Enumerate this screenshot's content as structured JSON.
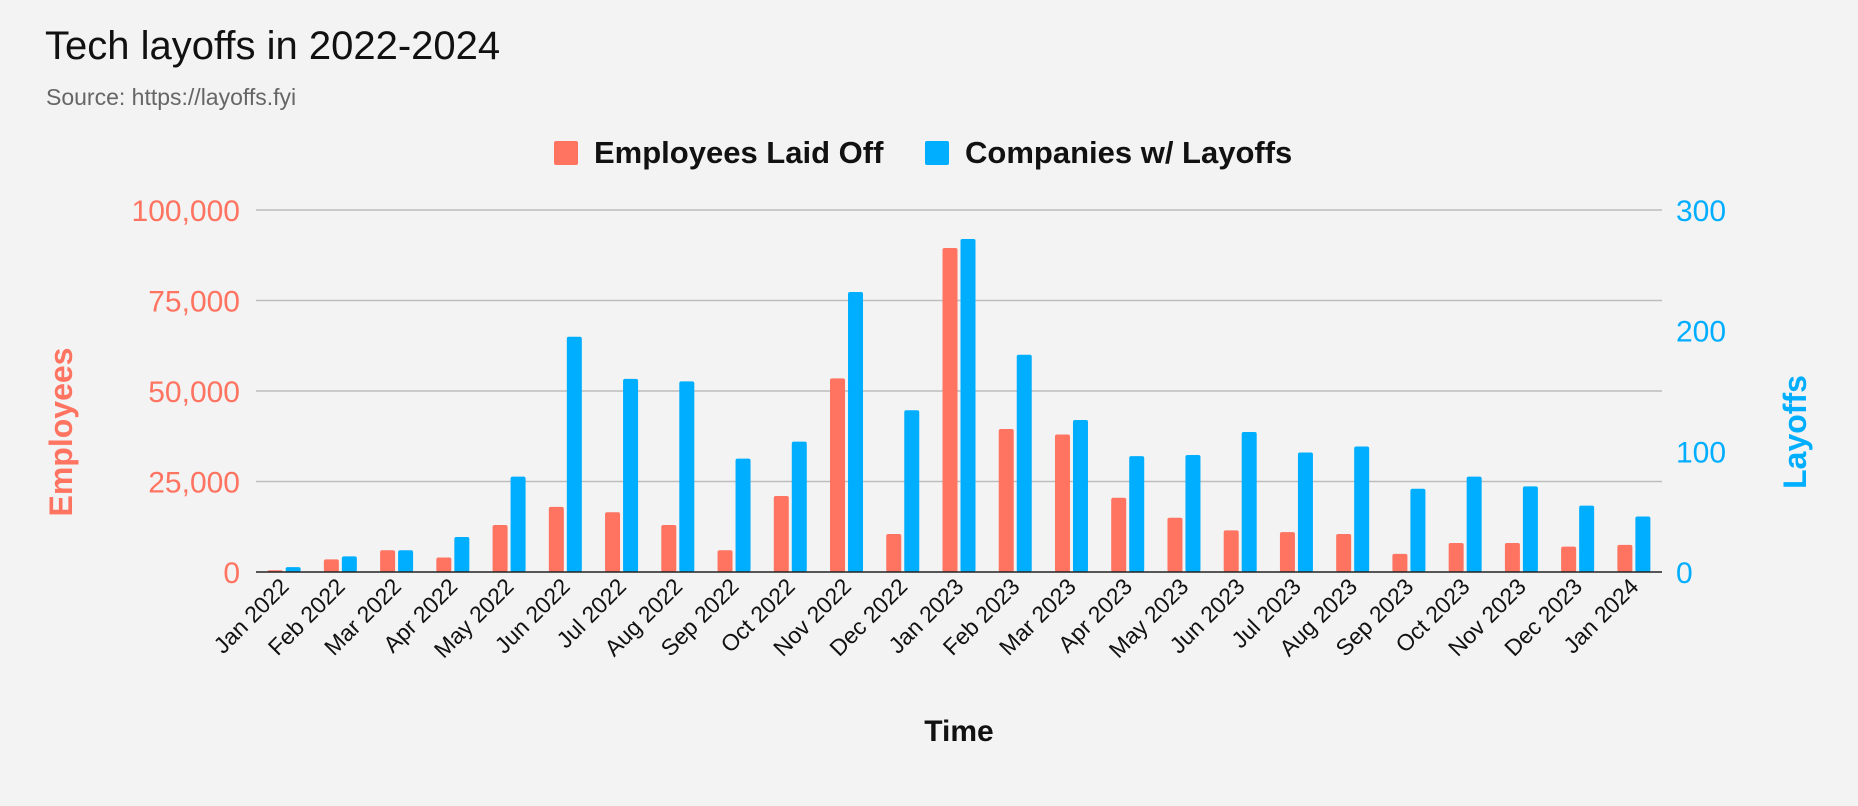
{
  "title": "Tech layoffs in 2022-2024",
  "subtitle": "Source: https://layoffs.fyi",
  "chart_data": {
    "type": "bar",
    "title": "Tech layoffs in 2022-2024",
    "subtitle": "Source: https://layoffs.fyi",
    "xlabel": "Time",
    "ylabel_left": "Employees",
    "ylabel_right": "Layoffs",
    "ylim_left": [
      0,
      100000
    ],
    "ylim_right": [
      0,
      300
    ],
    "yticks_left": [
      "0",
      "25,000",
      "50,000",
      "75,000",
      "100,000"
    ],
    "yticks_right": [
      "0",
      "100",
      "200",
      "300"
    ],
    "grid": true,
    "legend_position": "top-center",
    "categories": [
      "Jan 2022",
      "Feb 2022",
      "Mar 2022",
      "Apr 2022",
      "May 2022",
      "Jun 2022",
      "Jul 2022",
      "Aug 2022",
      "Sep 2022",
      "Oct 2022",
      "Nov 2022",
      "Dec 2022",
      "Jan 2023",
      "Feb 2023",
      "Mar 2023",
      "Apr 2023",
      "May 2023",
      "Jun 2023",
      "Jul 2023",
      "Aug 2023",
      "Sep 2023",
      "Oct 2023",
      "Nov 2023",
      "Dec 2023",
      "Jan 2024"
    ],
    "series": [
      {
        "name": "Employees Laid Off",
        "axis": "left",
        "color": "#ff7361",
        "values": [
          500,
          3500,
          6000,
          4000,
          13000,
          18000,
          16500,
          13000,
          6000,
          21000,
          53500,
          10500,
          89500,
          39500,
          38000,
          20500,
          15000,
          11500,
          11000,
          10500,
          5000,
          8000,
          8000,
          7000,
          7500
        ]
      },
      {
        "name": "Companies w/ Layoffs",
        "axis": "right",
        "color": "#00aeff",
        "values": [
          4,
          13,
          18,
          29,
          79,
          195,
          160,
          158,
          94,
          108,
          232,
          134,
          276,
          180,
          126,
          96,
          97,
          116,
          99,
          104,
          69,
          79,
          71,
          55,
          46
        ]
      }
    ]
  }
}
